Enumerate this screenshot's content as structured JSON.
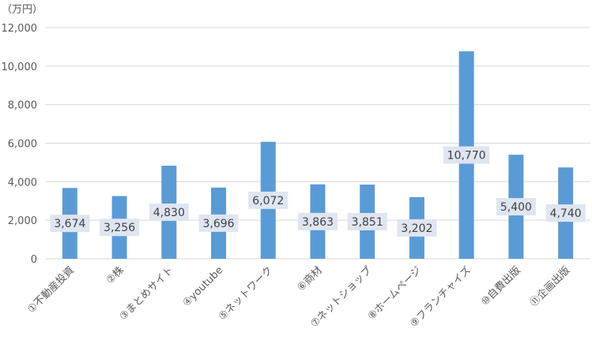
{
  "chart_data": {
    "type": "bar",
    "unit_label": "（万円）",
    "categories": [
      "①不動産投資",
      "②株",
      "③まとめサイト",
      "④youtube",
      "⑤ネットワーク",
      "⑥商材",
      "⑦ネットショップ",
      "⑧ホームページ",
      "⑨フランチャイズ",
      "⑩自費出版",
      "⑪企画出版"
    ],
    "values": [
      3674,
      3256,
      4830,
      3696,
      6072,
      3863,
      3851,
      3202,
      10770,
      5400,
      4740
    ],
    "data_labels": [
      "3,674",
      "3,256",
      "4,830",
      "3,696",
      "6,072",
      "3,863",
      "3,851",
      "3,202",
      "10,770",
      "5,400",
      "4,740"
    ],
    "y_ticks": [
      "0",
      "2,000",
      "4,000",
      "6,000",
      "8,000",
      "10,000",
      "12,000"
    ],
    "ylim": [
      0,
      12000
    ],
    "grid": true,
    "legend": "none",
    "colors": {
      "bar": "#5b9bd5",
      "gridline": "#d9d9d9",
      "axis_text": "#595959",
      "label_bg": "#dfe5f1",
      "label_text": "#404040"
    }
  }
}
